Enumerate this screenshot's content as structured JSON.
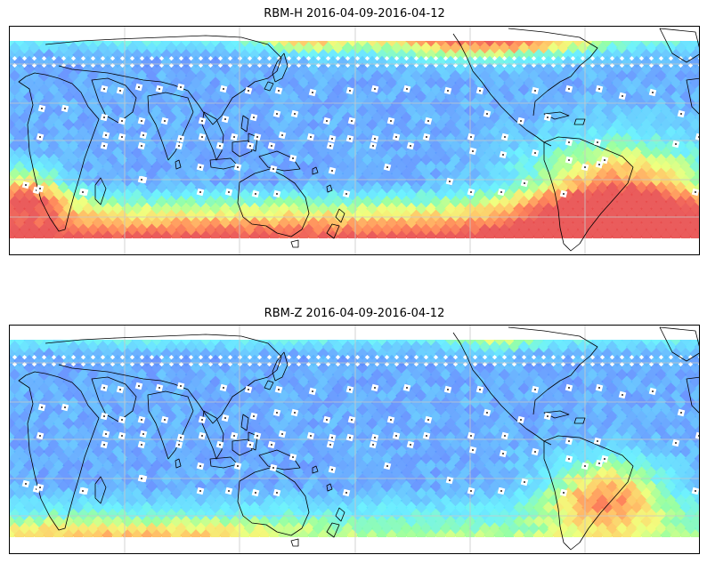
{
  "panels": [
    {
      "title": "RBM-H 2016-04-09-2016-04-12",
      "variable": "RBM-H",
      "date_range": "2016-04-09-2016-04-12",
      "intensity": "high"
    },
    {
      "title": "RBM-Z 2016-04-09-2016-04-12",
      "variable": "RBM-Z",
      "date_range": "2016-04-09-2016-04-12",
      "intensity": "low"
    }
  ],
  "colormap": [
    "#6a6aff",
    "#5c8cff",
    "#5cc8ff",
    "#5ef0ff",
    "#8cff9a",
    "#f0ff70",
    "#ffc25a",
    "#ff7a4a",
    "#e84a4a"
  ],
  "coastline_color": "#000000",
  "gridline_color": "#c8c8c8",
  "station_marker_color": "#ffffff"
}
